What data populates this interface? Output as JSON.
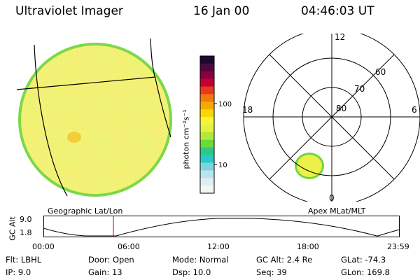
{
  "header": {
    "instrument": "Ultraviolet Imager",
    "date": "16 Jan 00",
    "time": "04:46:03 UT"
  },
  "colorbar": {
    "unit_label": "photon cm⁻²s⁻¹",
    "ticks": [
      "100",
      "10"
    ],
    "colors_top_to_bottom": [
      "#1a0a2e",
      "#4b0b3a",
      "#8b0040",
      "#c40030",
      "#e83a1c",
      "#f07a10",
      "#f8a800",
      "#f8d800",
      "#f4f43c",
      "#e2f040",
      "#b4e838",
      "#6cd83a",
      "#2cc88a",
      "#28c8c8",
      "#7cd4e0",
      "#b8e4ec",
      "#e0eef2",
      "#f4f6f6"
    ]
  },
  "image_panel": {
    "disk_color": "#f2f276",
    "rim_color": "#7cd848",
    "hotspot_color": "#f2c830"
  },
  "polar_panel": {
    "mlt_labels": {
      "top": "12",
      "left": "18",
      "right": "6",
      "bottom": "0"
    },
    "lat_labels": [
      "60",
      "70",
      "80"
    ],
    "oval_color": "#eef04a",
    "oval_rim_color": "#6cd83a"
  },
  "labels": {
    "geographic": "Geographic Lat/Lon",
    "apex": "Apex MLat/MLT"
  },
  "altitude_plot": {
    "axis_title": "GC Alt",
    "y_ticks": [
      "9.0",
      "1.8"
    ],
    "x_ticks": [
      "00:00",
      "06:00",
      "12:00",
      "18:00",
      "23:59"
    ],
    "marker_color": "#c00000"
  },
  "info": {
    "row1": [
      "Flt: LBHL",
      "Door: Open",
      "Mode: Normal",
      "GC Alt: 2.4 Re",
      "GLat: -74.3"
    ],
    "row2": [
      "IP:  9.0",
      "Gain: 13",
      "Dsp:    10.0",
      "Seq: 39",
      "GLon: 169.8"
    ]
  }
}
